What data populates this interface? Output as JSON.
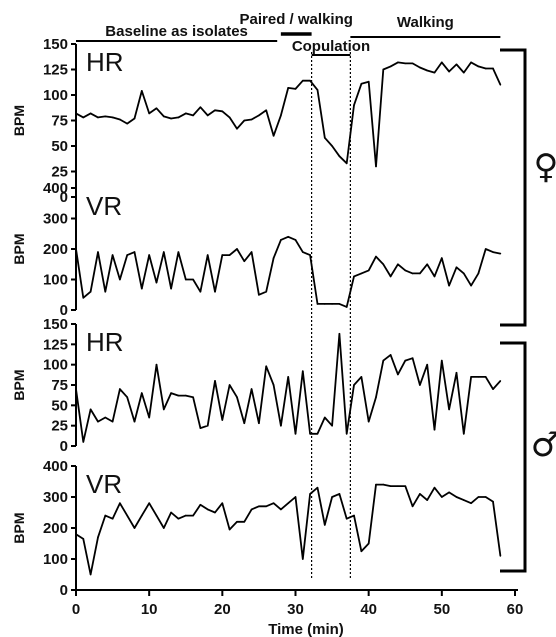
{
  "chart_data": {
    "type": "line",
    "xlabel": "Time (min)",
    "xlim": [
      0,
      60
    ],
    "x_ticks": [
      "0",
      "10",
      "20",
      "30",
      "40",
      "50",
      "60"
    ],
    "phases": [
      {
        "label": "Baseline as isolates",
        "start": 0,
        "end": 27.5
      },
      {
        "label": "Paired / walking",
        "start": 28,
        "end": 32.2
      },
      {
        "label": "Copulation",
        "start": 32.2,
        "end": 37.5
      },
      {
        "label": "Walking",
        "start": 37.5,
        "end": 58
      }
    ],
    "event_lines_x": [
      32.2,
      37.5
    ],
    "groups": [
      {
        "symbol": "♀",
        "symbol_name": "female-symbol",
        "panels": [
          0,
          1
        ]
      },
      {
        "symbol": "♂",
        "symbol_name": "male-symbol",
        "panels": [
          2,
          3
        ]
      }
    ],
    "panels": [
      {
        "tag": "HR",
        "ylabel": "BPM",
        "ylim": [
          0,
          150
        ],
        "y_ticks": [
          "150",
          "125",
          "100",
          "75",
          "50",
          "25",
          "0"
        ],
        "x": [
          0,
          1,
          2,
          3,
          4,
          5,
          6,
          7,
          8,
          9,
          10,
          11,
          12,
          13,
          14,
          15,
          16,
          17,
          18,
          19,
          20,
          21,
          22,
          23,
          24,
          25,
          26,
          27,
          28,
          29,
          30,
          31,
          32,
          33,
          34,
          35,
          36,
          37,
          38,
          39,
          40,
          41,
          42,
          43,
          44,
          45,
          46,
          47,
          48,
          49,
          50,
          51,
          52,
          53,
          54,
          55,
          56,
          57,
          58
        ],
        "y": [
          82,
          78,
          82,
          78,
          79,
          78,
          76,
          72,
          77,
          104,
          82,
          87,
          79,
          77,
          78,
          82,
          80,
          88,
          80,
          85,
          84,
          78,
          67,
          75,
          76,
          80,
          85,
          60,
          80,
          107,
          106,
          114,
          114,
          105,
          58,
          50,
          40,
          33,
          90,
          111,
          113,
          30,
          125,
          128,
          132,
          131,
          131,
          127,
          124,
          122,
          132,
          123,
          130,
          122,
          132,
          128,
          126,
          126,
          110
        ]
      },
      {
        "tag": "VR",
        "ylabel": "BPM",
        "ylim": [
          0,
          400
        ],
        "y_ticks": [
          "400",
          "300",
          "200",
          "100",
          "0"
        ],
        "x": [
          0,
          1,
          2,
          3,
          4,
          5,
          6,
          7,
          8,
          9,
          10,
          11,
          12,
          13,
          14,
          15,
          16,
          17,
          18,
          19,
          20,
          21,
          22,
          23,
          24,
          25,
          26,
          27,
          28,
          29,
          30,
          31,
          32,
          33,
          34,
          35,
          36,
          37,
          38,
          39,
          40,
          41,
          42,
          43,
          44,
          45,
          46,
          47,
          48,
          49,
          50,
          51,
          52,
          53,
          54,
          55,
          56,
          57,
          58
        ],
        "y": [
          200,
          40,
          60,
          190,
          60,
          180,
          100,
          180,
          190,
          70,
          180,
          90,
          190,
          70,
          190,
          100,
          100,
          60,
          180,
          60,
          180,
          180,
          200,
          160,
          190,
          50,
          60,
          170,
          230,
          240,
          230,
          190,
          180,
          20,
          20,
          20,
          20,
          10,
          110,
          120,
          130,
          175,
          150,
          110,
          150,
          130,
          120,
          120,
          150,
          110,
          170,
          80,
          140,
          120,
          80,
          120,
          200,
          190,
          185
        ]
      },
      {
        "tag": "HR",
        "ylabel": "BPM",
        "ylim": [
          0,
          150
        ],
        "y_ticks": [
          "150",
          "125",
          "100",
          "75",
          "50",
          "25",
          "0"
        ],
        "x": [
          0,
          1,
          2,
          3,
          4,
          5,
          6,
          7,
          8,
          9,
          10,
          11,
          12,
          13,
          14,
          15,
          16,
          17,
          18,
          19,
          20,
          21,
          22,
          23,
          24,
          25,
          26,
          27,
          28,
          29,
          30,
          31,
          32,
          33,
          34,
          35,
          36,
          37,
          38,
          39,
          40,
          41,
          42,
          43,
          44,
          45,
          46,
          47,
          48,
          49,
          50,
          51,
          52,
          53,
          54,
          55,
          56,
          57,
          58
        ],
        "y": [
          70,
          5,
          45,
          30,
          35,
          30,
          70,
          60,
          30,
          65,
          35,
          100,
          45,
          65,
          62,
          62,
          60,
          22,
          25,
          80,
          32,
          75,
          60,
          28,
          70,
          28,
          98,
          75,
          25,
          85,
          15,
          92,
          15,
          15,
          35,
          25,
          138,
          15,
          75,
          85,
          30,
          60,
          105,
          112,
          88,
          105,
          108,
          75,
          100,
          20,
          105,
          45,
          90,
          15,
          85,
          85,
          85,
          70,
          80
        ]
      },
      {
        "tag": "VR",
        "ylabel": "BPM",
        "ylim": [
          0,
          400
        ],
        "y_ticks": [
          "400",
          "300",
          "200",
          "100",
          "0"
        ],
        "x": [
          0,
          1,
          2,
          3,
          4,
          5,
          6,
          7,
          8,
          9,
          10,
          11,
          12,
          13,
          14,
          15,
          16,
          17,
          18,
          19,
          20,
          21,
          22,
          23,
          24,
          25,
          26,
          27,
          28,
          29,
          30,
          31,
          32,
          33,
          34,
          35,
          36,
          37,
          38,
          39,
          40,
          41,
          42,
          43,
          44,
          45,
          46,
          47,
          48,
          49,
          50,
          51,
          52,
          53,
          54,
          55,
          56,
          57,
          58
        ],
        "y": [
          180,
          165,
          50,
          170,
          240,
          230,
          280,
          240,
          200,
          240,
          280,
          240,
          200,
          250,
          230,
          240,
          240,
          275,
          260,
          250,
          280,
          195,
          220,
          220,
          260,
          270,
          270,
          280,
          260,
          280,
          300,
          100,
          310,
          330,
          210,
          300,
          310,
          230,
          240,
          125,
          150,
          340,
          340,
          335,
          335,
          335,
          270,
          310,
          290,
          330,
          300,
          315,
          300,
          290,
          280,
          300,
          300,
          285,
          110
        ]
      }
    ]
  }
}
